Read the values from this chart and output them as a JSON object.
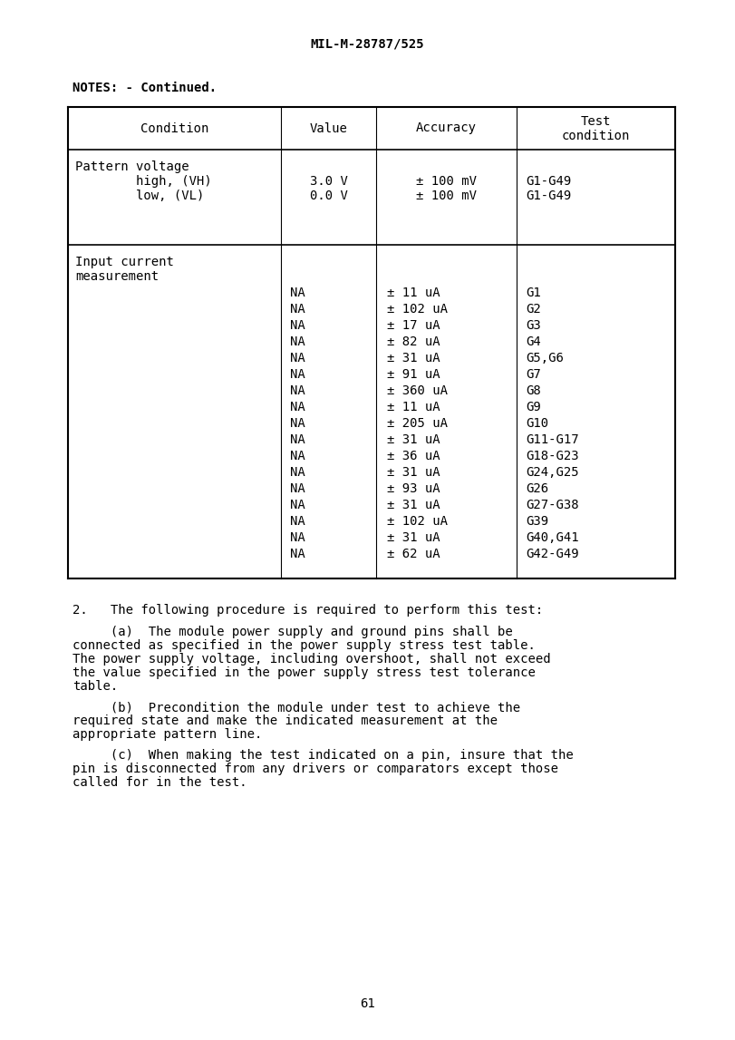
{
  "header_text": "MIL-M-28787/525",
  "notes_text": "NOTES: - Continued.",
  "table_headers": [
    "Condition",
    "Value",
    "Accuracy",
    "Test\ncondition"
  ],
  "row1_condition": [
    "Pattern voltage",
    "        high, (VH)",
    "        low, (VL)"
  ],
  "row1_value": [
    "3.0 V",
    "0.0 V"
  ],
  "row1_accuracy": [
    "± 100 mV",
    "± 100 mV"
  ],
  "row1_test": [
    "G1-G49",
    "G1-G49"
  ],
  "row2_condition": [
    "Input current",
    "measurement"
  ],
  "row2_values": [
    "NA",
    "NA",
    "NA",
    "NA",
    "NA",
    "NA",
    "NA",
    "NA",
    "NA",
    "NA",
    "NA",
    "NA",
    "NA",
    "NA",
    "NA",
    "NA",
    "NA"
  ],
  "row2_accuracy": [
    "± 11 uA",
    "± 102 uA",
    "± 17 uA",
    "± 82 uA",
    "± 31 uA",
    "± 91 uA",
    "± 360 uA",
    "± 11 uA",
    "± 205 uA",
    "± 31 uA",
    "± 36 uA",
    "± 31 uA",
    "± 93 uA",
    "± 31 uA",
    "± 102 uA",
    "± 31 uA",
    "± 62 uA"
  ],
  "row2_test": [
    "G1",
    "G2",
    "G3",
    "G4",
    "G5,G6",
    "G7",
    "G8",
    "G9",
    "G10",
    "G11-G17",
    "G18-G23",
    "G24,G25",
    "G26",
    "G27-G38",
    "G39",
    "G40,G41",
    "G42-G49"
  ],
  "para2": "2.   The following procedure is required to perform this test:",
  "para_a1": "     (a)  The module power supply and ground pins shall be",
  "para_a2": "connected as specified in the power supply stress test table.",
  "para_a3": "The power supply voltage, including overshoot, shall not exceed",
  "para_a4": "the value specified in the power supply stress test tolerance",
  "para_a5": "table.",
  "para_b1": "     (b)  Precondition the module under test to achieve the",
  "para_b2": "required state and make the indicated measurement at the",
  "para_b3": "appropriate pattern line.",
  "para_c1": "     (c)  When making the test indicated on a pin, insure that the",
  "para_c2": "pin is disconnected from any drivers or comparators except those",
  "para_c3": "called for in the test.",
  "page_number": "61",
  "bg_color": "#ffffff",
  "lw_outer": 1.5,
  "lw_inner": 0.8,
  "fs_header": 10,
  "fs_body": 9.5
}
